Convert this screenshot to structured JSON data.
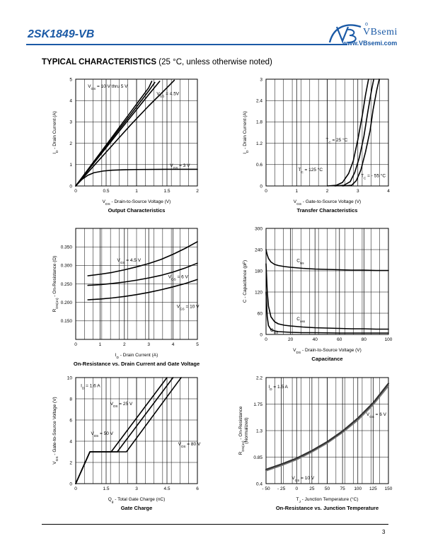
{
  "header": {
    "part_number": "2SK1849-VB",
    "brand": "VBsemi",
    "url": "www.VBsemi.com",
    "accent_color": "#1b5aa6"
  },
  "section_title": {
    "bold": "TYPICAL CHARACTERISTICS",
    "normal": "(25 °C, unless otherwise noted)"
  },
  "footer": {
    "page_number": "3"
  },
  "chart_data": [
    {
      "id": "output",
      "type": "line",
      "title": "Output Characteristics",
      "xlabel": "V_DS - Drain-to-Source Voltage (V)",
      "ylabel": "I_D - Drain Current (A)",
      "xlim": [
        0,
        2
      ],
      "ylim": [
        0,
        5
      ],
      "xticks": [
        0,
        0.5,
        1,
        1.5,
        2
      ],
      "xticklabels": [
        "0",
        "0.5",
        "1",
        "1.5",
        "2"
      ],
      "yticks": [
        0,
        1,
        2,
        3,
        4,
        5
      ],
      "yticklabels": [
        "0",
        "1",
        "2",
        "3",
        "4",
        "5"
      ],
      "grid": true,
      "series": [
        {
          "name": "VGS = 10 V thru 5 V",
          "x": [
            0,
            0.3,
            0.6,
            0.9,
            1.2,
            1.25
          ],
          "y": [
            0,
            1.15,
            2.3,
            3.45,
            4.6,
            4.9
          ]
        },
        {
          "name": "",
          "x": [
            0,
            0.3,
            0.6,
            0.9,
            1.2,
            1.3
          ],
          "y": [
            0,
            1.12,
            2.23,
            3.33,
            4.45,
            4.85
          ]
        },
        {
          "name": "",
          "x": [
            0,
            0.3,
            0.6,
            0.9,
            1.2,
            1.38
          ],
          "y": [
            0,
            1.08,
            2.15,
            3.22,
            4.28,
            4.9
          ]
        },
        {
          "name": "VGS = 4.5V",
          "x": [
            0,
            0.3,
            0.6,
            0.9,
            1.2,
            1.5,
            1.62
          ],
          "y": [
            0,
            0.95,
            1.9,
            2.85,
            3.75,
            4.6,
            4.95
          ]
        },
        {
          "name": "VGS = 3 V",
          "x": [
            0,
            0.1,
            0.2,
            0.3,
            0.45,
            0.6,
            0.8,
            1.0,
            1.5,
            2.0
          ],
          "y": [
            0,
            0.3,
            0.5,
            0.62,
            0.7,
            0.74,
            0.76,
            0.77,
            0.78,
            0.78
          ]
        }
      ],
      "annotations": [
        {
          "text": "V",
          "sub": "GS",
          "rest": " = 10 V thru 5 V",
          "x": 0.2,
          "y": 4.6
        },
        {
          "text": "V",
          "sub": "GS",
          "rest": " = 4.5V",
          "x": 1.33,
          "y": 4.25
        },
        {
          "text": "V",
          "sub": "GS",
          "rest": " = 3 V",
          "x": 1.55,
          "y": 0.9
        }
      ]
    },
    {
      "id": "transfer",
      "type": "line",
      "title": "Transfer Characteristics",
      "xlabel": "V_GS - Gate-to-Source Voltage (V)",
      "ylabel": "I_D - Drain Current (A)",
      "xlim": [
        0,
        4
      ],
      "ylim": [
        0,
        3
      ],
      "xticks": [
        0,
        1,
        2,
        3,
        4
      ],
      "xticklabels": [
        "0",
        "1",
        "2",
        "3",
        "4"
      ],
      "yticks": [
        0,
        0.6,
        1.2,
        1.8,
        2.4,
        3
      ],
      "yticklabels": [
        "0",
        "0.6",
        "1.2",
        "1.8",
        "2.4",
        "3"
      ],
      "grid": true,
      "series": [
        {
          "name": "TC = 125 °C",
          "x": [
            2.0,
            2.3,
            2.5,
            2.7,
            2.85,
            3.0,
            3.15,
            3.25,
            3.35
          ],
          "y": [
            0,
            0.02,
            0.1,
            0.35,
            0.7,
            1.3,
            2.0,
            2.55,
            3.0
          ]
        },
        {
          "name": "TC = 25 °C",
          "x": [
            2.25,
            2.55,
            2.75,
            2.9,
            3.05,
            3.2,
            3.32,
            3.45,
            3.52
          ],
          "y": [
            0,
            0.02,
            0.12,
            0.38,
            0.8,
            1.4,
            2.05,
            2.7,
            3.0
          ]
        },
        {
          "name": "TC = - 55 °C",
          "x": [
            2.5,
            2.8,
            2.95,
            3.1,
            3.25,
            3.4,
            3.5,
            3.62,
            3.7
          ],
          "y": [
            0,
            0.02,
            0.15,
            0.45,
            0.95,
            1.55,
            2.15,
            2.7,
            3.0
          ]
        }
      ],
      "annotations": [
        {
          "text": "T",
          "sub": "C",
          "rest": " = 25 °C",
          "x": 1.95,
          "y": 1.25
        },
        {
          "text": "T",
          "sub": "C",
          "rest": " = 125 °C",
          "x": 1.05,
          "y": 0.42
        },
        {
          "text": "T",
          "sub": "C",
          "rest": " = - 55 °C",
          "x": 3.1,
          "y": 0.25
        }
      ]
    },
    {
      "id": "onres",
      "type": "line",
      "title": "On-Resistance vs. Drain Current and Gate Voltage",
      "xlabel": "I_D - Drain Current (A)",
      "ylabel": "R_DS(on) - On-Resistance (Ω)",
      "xlim": [
        0,
        5
      ],
      "ylim": [
        0.1,
        0.4
      ],
      "xticks": [
        0,
        1,
        2,
        3,
        4,
        5
      ],
      "xticklabels": [
        "0",
        "1",
        "2",
        "3",
        "4",
        "5"
      ],
      "yticks": [
        0.15,
        0.2,
        0.25,
        0.3,
        0.35
      ],
      "yticklabels": [
        "0.150",
        "0.200",
        "0.250",
        "0.300",
        "0.350"
      ],
      "grid": true,
      "series": [
        {
          "name": "VGS = 4.5 V",
          "x": [
            0.5,
            1,
            1.5,
            2,
            2.5,
            3,
            3.5,
            4,
            4.5,
            5
          ],
          "y": [
            0.272,
            0.276,
            0.281,
            0.288,
            0.296,
            0.305,
            0.316,
            0.33,
            0.346,
            0.364
          ]
        },
        {
          "name": "VGS = 6 V",
          "x": [
            0.5,
            1,
            1.5,
            2,
            2.5,
            3,
            3.5,
            4,
            4.5,
            5
          ],
          "y": [
            0.246,
            0.248,
            0.251,
            0.255,
            0.26,
            0.266,
            0.273,
            0.282,
            0.293,
            0.306
          ]
        },
        {
          "name": "VGS = 10 V",
          "x": [
            0.5,
            1,
            1.5,
            2,
            2.5,
            3,
            3.5,
            4,
            4.5,
            5
          ],
          "y": [
            0.207,
            0.209,
            0.212,
            0.216,
            0.221,
            0.227,
            0.234,
            0.242,
            0.251,
            0.262
          ]
        }
      ],
      "annotations": [
        {
          "text": "V",
          "sub": "GS",
          "rest": " = 4.5 V",
          "x": 1.7,
          "y": 0.31
        },
        {
          "text": "V",
          "sub": "GS",
          "rest": " = 6 V",
          "x": 3.8,
          "y": 0.265
        },
        {
          "text": "V",
          "sub": "GS",
          "rest": " = 10 V",
          "x": 4.15,
          "y": 0.185
        }
      ]
    },
    {
      "id": "cap",
      "type": "line",
      "title": "Capacitance",
      "xlabel": "V_DS - Drain-to-Source Voltage (V)",
      "ylabel": "C - Capacitance (pF)",
      "xlim": [
        0,
        100
      ],
      "ylim": [
        0,
        300
      ],
      "xticks": [
        0,
        20,
        40,
        60,
        80,
        100
      ],
      "xticklabels": [
        "0",
        "20",
        "40",
        "60",
        "80",
        "100"
      ],
      "yticks": [
        0,
        60,
        120,
        180,
        240,
        300
      ],
      "yticklabels": [
        "0",
        "60",
        "120",
        "180",
        "240",
        "300"
      ],
      "grid": true,
      "series": [
        {
          "name": "Ciss",
          "x": [
            0,
            1,
            2,
            4,
            7,
            10,
            15,
            20,
            30,
            40,
            50,
            60,
            70,
            80,
            90,
            100
          ],
          "y": [
            240,
            225,
            215,
            205,
            198,
            195,
            192,
            190,
            187,
            185,
            184,
            183,
            182,
            182,
            181,
            181
          ]
        },
        {
          "name": "Coss",
          "x": [
            0,
            1,
            2,
            4,
            7,
            10,
            15,
            20,
            30,
            40,
            50,
            60,
            70,
            80,
            90,
            100
          ],
          "y": [
            200,
            120,
            80,
            50,
            36,
            30,
            26,
            24,
            21,
            19,
            18,
            17,
            16,
            16,
            15,
            15
          ]
        },
        {
          "name": "Crss",
          "x": [
            0,
            1,
            2,
            4,
            7,
            10,
            15,
            20,
            30,
            40,
            50,
            60,
            70,
            80,
            90,
            100
          ],
          "y": [
            120,
            50,
            25,
            14,
            10,
            8,
            7,
            6,
            5,
            5,
            4.5,
            4,
            4,
            4,
            4,
            4
          ]
        }
      ],
      "annotations": [
        {
          "text": "C",
          "sub": "iss",
          "rest": "",
          "x": 25,
          "y": 205
        },
        {
          "text": "C",
          "sub": "oss",
          "rest": "",
          "x": 25,
          "y": 40
        },
        {
          "text": "C",
          "sub": "rss",
          "rest": "",
          "x": 3.5,
          "y": 8
        }
      ]
    },
    {
      "id": "gate",
      "type": "line",
      "title": "Gate Charge",
      "xlabel": "Q_g - Total Gate Charge (nC)",
      "ylabel": "V_GS - Gate-to-Source Voltage (V)",
      "xlim": [
        0,
        6
      ],
      "ylim": [
        0,
        10
      ],
      "xticks": [
        0,
        1.5,
        3,
        4.5,
        6
      ],
      "xticklabels": [
        "0",
        "1.5",
        "3",
        "4.5",
        "6"
      ],
      "yticks": [
        0,
        2,
        4,
        6,
        8,
        10
      ],
      "yticklabels": [
        "0",
        "2",
        "4",
        "6",
        "8",
        "10"
      ],
      "grid": true,
      "series": [
        {
          "name": "VDS = 25 V",
          "x": [
            0,
            0.7,
            1.75,
            4.5
          ],
          "y": [
            0,
            3.0,
            3.0,
            10
          ]
        },
        {
          "name": "VDS = 50 V",
          "x": [
            0,
            0.7,
            2.05,
            4.8
          ],
          "y": [
            0,
            3.0,
            3.0,
            10
          ]
        },
        {
          "name": "VDS = 80 V",
          "x": [
            0,
            0.7,
            2.5,
            5.2
          ],
          "y": [
            0,
            3.0,
            3.0,
            10
          ]
        }
      ],
      "annotations": [
        {
          "text": "I",
          "sub": "D",
          "rest": " = 1.6 A",
          "x": 0.25,
          "y": 9.1
        },
        {
          "text": "V",
          "sub": "DS",
          "rest": " = 25 V",
          "x": 1.7,
          "y": 7.4
        },
        {
          "text": "V",
          "sub": "DS",
          "rest": " = 50 V",
          "x": 0.75,
          "y": 4.6
        },
        {
          "text": "V",
          "sub": "DS",
          "rest": " = 80 V",
          "x": 5.05,
          "y": 3.6
        }
      ]
    },
    {
      "id": "onrestemp",
      "type": "line",
      "title": "On-Resistance vs. Junction Temperature",
      "xlabel": "T_J - Junction Temperature (°C)",
      "ylabel": "R_DS(on) - On-Resistance (Normalized)",
      "xlim": [
        -50,
        150
      ],
      "ylim": [
        0.4,
        2.2
      ],
      "xticks": [
        -50,
        -25,
        0,
        25,
        50,
        75,
        100,
        125,
        150
      ],
      "xticklabels": [
        "- 50",
        "- 25",
        "0",
        "25",
        "50",
        "75",
        "100",
        "125",
        "150"
      ],
      "yticks": [
        0.4,
        0.85,
        1.3,
        1.75,
        2.2
      ],
      "yticklabels": [
        "0.4",
        "0.85",
        "1.3",
        "1.75",
        "2.2"
      ],
      "grid": true,
      "series": [
        {
          "name": "VGS = 10 V",
          "x": [
            -50,
            -25,
            0,
            25,
            50,
            75,
            100,
            125,
            150
          ],
          "y": [
            0.62,
            0.71,
            0.81,
            0.94,
            1.09,
            1.27,
            1.48,
            1.74,
            2.06
          ]
        },
        {
          "name": "VGS = 6 V",
          "x": [
            -50,
            -25,
            0,
            25,
            50,
            75,
            100,
            125,
            150
          ],
          "y": [
            0.64,
            0.73,
            0.83,
            0.96,
            1.11,
            1.29,
            1.51,
            1.77,
            2.1
          ]
        }
      ],
      "annotations": [
        {
          "text": "I",
          "sub": "D",
          "rest": " = 1.5 A",
          "x": -46,
          "y": 2.02
        },
        {
          "text": "V",
          "sub": "GS",
          "rest": " = 6 V",
          "x": 114,
          "y": 1.55
        },
        {
          "text": "V",
          "sub": "GS",
          "rest": " = 10 V",
          "x": -8,
          "y": 0.47
        }
      ]
    }
  ]
}
